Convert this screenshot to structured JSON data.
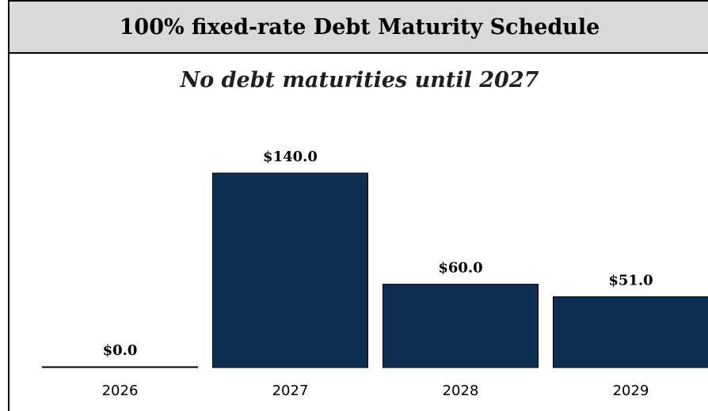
{
  "header": {
    "title": "100% fixed-rate Debt Maturity Schedule"
  },
  "chart_data": {
    "type": "bar",
    "title": "100% fixed-rate Debt Maturity Schedule",
    "subtitle": "No debt maturities until 2027",
    "categories": [
      "2026",
      "2027",
      "2028",
      "2029"
    ],
    "values": [
      0.0,
      140.0,
      60.0,
      51.0
    ],
    "value_labels": [
      "$0.0",
      "$140.0",
      "$60.0",
      "$51.0"
    ],
    "xlabel": "",
    "ylabel": "",
    "ylim": [
      0,
      140
    ],
    "grid": false,
    "legend": "none",
    "bar_color": "#0e2f52"
  }
}
